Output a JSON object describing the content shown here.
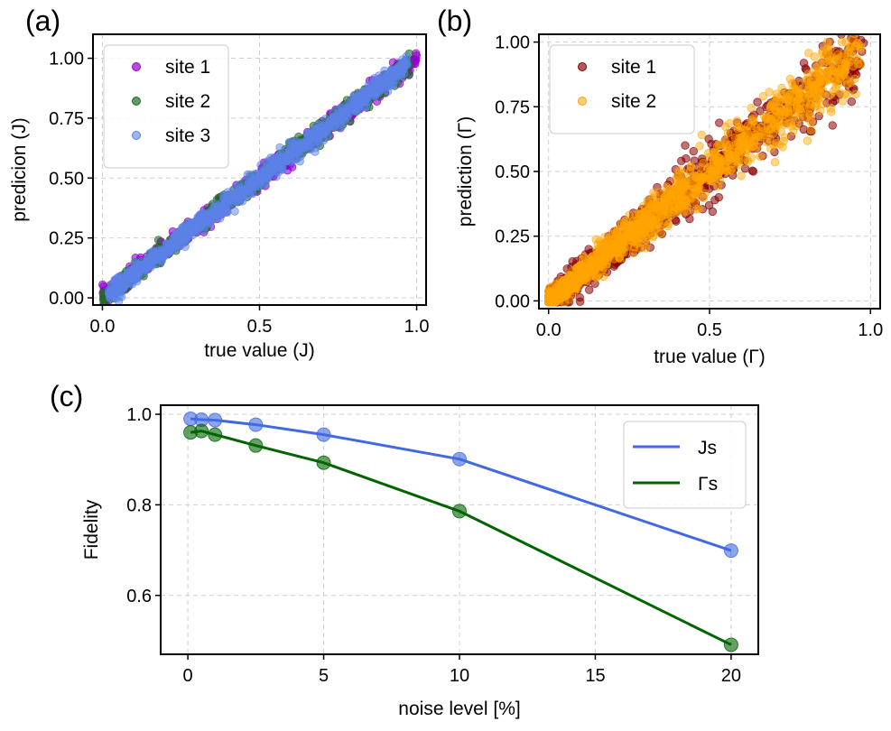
{
  "chart_data": [
    {
      "panel_label": "(a)",
      "type": "scatter",
      "xlabel": "true value (J)",
      "ylabel": "predicion (J)",
      "xlim": [
        -0.03,
        1.03
      ],
      "ylim": [
        -0.03,
        1.1
      ],
      "xticks": [
        "0.0",
        "0.5",
        "1.0"
      ],
      "xtick_values": [
        0,
        0.5,
        1.0
      ],
      "yticks": [
        "0.00",
        "0.25",
        "0.50",
        "0.75",
        "1.00"
      ],
      "ytick_values": [
        0,
        0.25,
        0.5,
        0.75,
        1.0
      ],
      "grid": true,
      "legend_position": "upper-left",
      "series": [
        {
          "name": "site 1",
          "color": "#9400d3",
          "alpha": 0.6,
          "range": [
            0.0,
            1.0
          ],
          "noise": 0.02,
          "points": 700
        },
        {
          "name": "site 2",
          "color": "#1f6e1f",
          "alpha": 0.6,
          "range": [
            0.0,
            0.98
          ],
          "noise": 0.02,
          "points": 600
        },
        {
          "name": "site 3",
          "color": "#5b82e8",
          "alpha": 0.5,
          "range": [
            0.02,
            0.97
          ],
          "noise": 0.02,
          "points": 900
        }
      ]
    },
    {
      "panel_label": "(b)",
      "type": "scatter",
      "xlabel": "true value (Γ)",
      "ylabel": "prediction (Γ)",
      "xlim": [
        -0.03,
        1.03
      ],
      "ylim": [
        -0.03,
        1.03
      ],
      "xticks": [
        "0.0",
        "0.5",
        "1.0"
      ],
      "xtick_values": [
        0,
        0.5,
        1.0
      ],
      "yticks": [
        "0.00",
        "0.25",
        "0.50",
        "0.75",
        "1.00"
      ],
      "ytick_values": [
        0,
        0.25,
        0.5,
        0.75,
        1.0
      ],
      "grid": true,
      "legend_position": "upper-left",
      "series": [
        {
          "name": "site 1",
          "color": "#8b0000",
          "alpha": 0.55,
          "range": [
            0.0,
            0.98
          ],
          "noise": 0.06,
          "points": 900
        },
        {
          "name": "site 2",
          "color": "#ffa500",
          "alpha": 0.45,
          "range": [
            0.0,
            0.97
          ],
          "noise": 0.05,
          "points": 1300
        }
      ]
    },
    {
      "panel_label": "(c)",
      "type": "line",
      "xlabel": "noise level [%]",
      "ylabel": "Fidelity",
      "xlim": [
        -1,
        21
      ],
      "ylim": [
        0.47,
        1.02
      ],
      "xticks": [
        "0",
        "5",
        "10",
        "15",
        "20"
      ],
      "xtick_values": [
        0,
        5,
        10,
        15,
        20
      ],
      "yticks": [
        "0.6",
        "0.8",
        "1.0"
      ],
      "ytick_values": [
        0.6,
        0.8,
        1.0
      ],
      "grid": true,
      "legend_position": "upper-right",
      "x": [
        0.1,
        0.5,
        1,
        2.5,
        5,
        10,
        20
      ],
      "series": [
        {
          "name": "Js",
          "color": "#4169e1",
          "values": [
            0.99,
            0.988,
            0.987,
            0.977,
            0.955,
            0.901,
            0.699
          ]
        },
        {
          "name": "Γs",
          "color": "#006400",
          "values": [
            0.96,
            0.963,
            0.955,
            0.931,
            0.893,
            0.786,
            0.491
          ]
        }
      ]
    }
  ]
}
